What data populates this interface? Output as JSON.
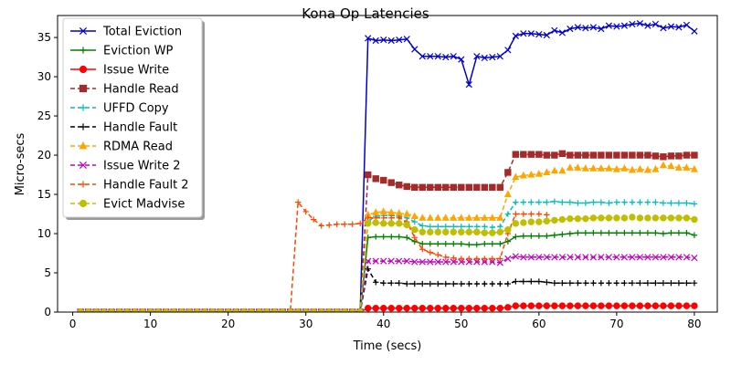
{
  "chart_data": {
    "type": "line",
    "title": "Kona Op Latencies",
    "xlabel": "Time (secs)",
    "ylabel": "Micro-secs",
    "xlim": [
      -1.95,
      82.95
    ],
    "ylim": [
      0,
      37.8
    ],
    "xticks": [
      "0",
      "10",
      "20",
      "30",
      "40",
      "50",
      "60",
      "70",
      "80"
    ],
    "yticks": [
      "0",
      "5",
      "10",
      "15",
      "20",
      "25",
      "30",
      "35"
    ],
    "grid": false,
    "legend_position": "top-left",
    "x": [
      1,
      2,
      3,
      4,
      5,
      6,
      7,
      8,
      9,
      10,
      11,
      12,
      13,
      14,
      15,
      16,
      17,
      18,
      19,
      20,
      21,
      22,
      23,
      24,
      25,
      26,
      27,
      28,
      29,
      30,
      31,
      32,
      33,
      34,
      35,
      36,
      37,
      38,
      39,
      40,
      41,
      42,
      43,
      44,
      45,
      46,
      47,
      48,
      49,
      50,
      51,
      52,
      53,
      54,
      55,
      56,
      57,
      58,
      59,
      60,
      61,
      62,
      63,
      64,
      65,
      66,
      67,
      68,
      69,
      70,
      71,
      72,
      73,
      74,
      75,
      76,
      77,
      78,
      79,
      80
    ],
    "series": [
      {
        "name": "Total Eviction",
        "color": "#0000cc",
        "style": "solid",
        "marker": "x",
        "values": [
          0,
          0,
          0,
          0,
          0,
          0,
          0,
          0,
          0,
          0,
          0,
          0,
          0,
          0,
          0,
          0,
          0,
          0,
          0,
          0,
          0,
          0,
          0,
          0,
          0,
          0,
          0,
          0,
          0,
          0,
          0,
          0,
          0,
          0,
          0,
          0,
          0,
          34.9,
          34.6,
          34.7,
          34.6,
          34.7,
          34.8,
          33.5,
          32.6,
          32.6,
          32.6,
          32.5,
          32.6,
          32.2,
          29.0,
          32.6,
          32.4,
          32.5,
          32.6,
          33.4,
          35.2,
          35.5,
          35.5,
          35.4,
          35.3,
          35.9,
          35.6,
          36.1,
          36.3,
          36.2,
          36.3,
          36.1,
          36.5,
          36.4,
          36.5,
          36.7,
          36.8,
          36.5,
          36.7,
          36.2,
          36.4,
          36.3,
          36.6,
          35.8
        ]
      },
      {
        "name": "Eviction WP",
        "color": "#008000",
        "style": "solid",
        "marker": "+",
        "values": [
          0,
          0,
          0,
          0,
          0,
          0,
          0,
          0,
          0,
          0,
          0,
          0,
          0,
          0,
          0,
          0,
          0,
          0,
          0,
          0,
          0,
          0,
          0,
          0,
          0,
          0,
          0,
          0,
          0,
          0,
          0,
          0,
          0,
          0,
          0,
          0,
          0,
          9.5,
          9.6,
          9.6,
          9.6,
          9.6,
          9.5,
          9.0,
          8.7,
          8.7,
          8.7,
          8.7,
          8.7,
          8.7,
          8.6,
          8.6,
          8.7,
          8.7,
          8.7,
          9.0,
          9.6,
          9.7,
          9.7,
          9.7,
          9.7,
          9.8,
          9.9,
          10.0,
          10.1,
          10.1,
          10.1,
          10.1,
          10.1,
          10.1,
          10.1,
          10.1,
          10.1,
          10.1,
          10.1,
          10.0,
          10.1,
          10.1,
          10.1,
          9.8
        ]
      },
      {
        "name": "Issue Write",
        "color": "#ff0000",
        "style": "solid",
        "marker": "o",
        "values": [
          0,
          0,
          0,
          0,
          0,
          0,
          0,
          0,
          0,
          0,
          0,
          0,
          0,
          0,
          0,
          0,
          0,
          0,
          0,
          0,
          0,
          0,
          0,
          0,
          0,
          0,
          0,
          0,
          0,
          0,
          0,
          0,
          0,
          0,
          0,
          0,
          0,
          0.5,
          0.5,
          0.5,
          0.5,
          0.5,
          0.5,
          0.5,
          0.5,
          0.5,
          0.5,
          0.5,
          0.5,
          0.5,
          0.5,
          0.5,
          0.5,
          0.5,
          0.5,
          0.6,
          0.8,
          0.8,
          0.8,
          0.8,
          0.8,
          0.8,
          0.8,
          0.8,
          0.8,
          0.8,
          0.8,
          0.8,
          0.8,
          0.8,
          0.8,
          0.8,
          0.8,
          0.8,
          0.8,
          0.8,
          0.8,
          0.8,
          0.8,
          0.8
        ]
      },
      {
        "name": "Handle Read",
        "color": "#a52a2a",
        "style": "dashed",
        "marker": "s",
        "values": [
          0,
          0,
          0,
          0,
          0,
          0,
          0,
          0,
          0,
          0,
          0,
          0,
          0,
          0,
          0,
          0,
          0,
          0,
          0,
          0,
          0,
          0,
          0,
          0,
          0,
          0,
          0,
          0,
          0,
          0,
          0,
          0,
          0,
          0,
          0,
          0,
          0,
          17.5,
          17.0,
          16.8,
          16.5,
          16.2,
          16.0,
          15.9,
          15.9,
          15.9,
          15.9,
          15.9,
          15.9,
          15.9,
          15.9,
          15.9,
          15.9,
          15.9,
          15.9,
          17.8,
          20.1,
          20.1,
          20.1,
          20.1,
          20.0,
          20.0,
          20.2,
          20.0,
          20.0,
          20.0,
          20.0,
          20.0,
          20.0,
          20.0,
          20.0,
          20.0,
          20.0,
          20.0,
          19.9,
          19.8,
          19.9,
          19.9,
          20.0,
          20.0
        ]
      },
      {
        "name": "UFFD Copy",
        "color": "#00bfbf",
        "style": "dashed",
        "marker": "+",
        "values": [
          0,
          0,
          0,
          0,
          0,
          0,
          0,
          0,
          0,
          0,
          0,
          0,
          0,
          0,
          0,
          0,
          0,
          0,
          0,
          0,
          0,
          0,
          0,
          0,
          0,
          0,
          0,
          0,
          0,
          0,
          0,
          0,
          0,
          0,
          0,
          0,
          0,
          11.6,
          12.2,
          12.3,
          12.3,
          12.2,
          12.0,
          11.5,
          11.0,
          10.9,
          10.9,
          10.9,
          10.9,
          10.9,
          10.9,
          10.9,
          10.9,
          10.8,
          10.9,
          12.5,
          14.0,
          14.0,
          14.0,
          14.0,
          14.0,
          14.1,
          14.0,
          14.0,
          13.9,
          13.9,
          14.0,
          14.0,
          13.9,
          14.0,
          14.0,
          14.0,
          14.0,
          14.0,
          14.0,
          13.9,
          13.9,
          13.9,
          13.9,
          13.8
        ]
      },
      {
        "name": "Handle Fault",
        "color": "#000000",
        "style": "dashed",
        "marker": "+",
        "values": [
          0,
          0,
          0,
          0,
          0,
          0,
          0,
          0,
          0,
          0,
          0,
          0,
          0,
          0,
          0,
          0,
          0,
          0,
          0,
          0,
          0,
          0,
          0,
          0,
          0,
          0,
          0,
          0,
          0,
          0,
          0,
          0,
          0,
          0,
          0,
          0,
          0,
          5.5,
          3.8,
          3.7,
          3.7,
          3.7,
          3.6,
          3.6,
          3.6,
          3.6,
          3.6,
          3.6,
          3.6,
          3.6,
          3.6,
          3.6,
          3.6,
          3.6,
          3.6,
          3.6,
          3.9,
          3.9,
          3.9,
          3.9,
          3.8,
          3.7,
          3.7,
          3.7,
          3.7,
          3.7,
          3.7,
          3.7,
          3.7,
          3.7,
          3.7,
          3.7,
          3.7,
          3.7,
          3.7,
          3.7,
          3.7,
          3.7,
          3.7,
          3.7
        ]
      },
      {
        "name": "RDMA Read",
        "color": "#ffa500",
        "style": "dashed",
        "marker": "^",
        "values": [
          0,
          0,
          0,
          0,
          0,
          0,
          0,
          0,
          0,
          0,
          0,
          0,
          0,
          0,
          0,
          0,
          0,
          0,
          0,
          0,
          0,
          0,
          0,
          0,
          0,
          0,
          0,
          0,
          0,
          0,
          0,
          0,
          0,
          0,
          0,
          0,
          0,
          12.4,
          12.7,
          12.8,
          12.7,
          12.6,
          12.5,
          12.2,
          12.0,
          12.0,
          12.0,
          12.0,
          12.0,
          12.0,
          12.0,
          12.0,
          12.0,
          12.0,
          12.0,
          15.0,
          17.2,
          17.4,
          17.5,
          17.6,
          17.8,
          18.0,
          18.0,
          18.4,
          18.4,
          18.3,
          18.3,
          18.3,
          18.3,
          18.2,
          18.3,
          18.1,
          18.2,
          18.1,
          18.2,
          18.7,
          18.6,
          18.4,
          18.4,
          18.2
        ]
      },
      {
        "name": "Issue Write 2",
        "color": "#bf00bf",
        "style": "dashed",
        "marker": "x",
        "values": [
          0,
          0,
          0,
          0,
          0,
          0,
          0,
          0,
          0,
          0,
          0,
          0,
          0,
          0,
          0,
          0,
          0,
          0,
          0,
          0,
          0,
          0,
          0,
          0,
          0,
          0,
          0,
          0,
          0,
          0,
          0,
          0,
          0,
          0,
          0,
          0,
          0,
          6.5,
          6.5,
          6.5,
          6.5,
          6.5,
          6.5,
          6.4,
          6.4,
          6.4,
          6.4,
          6.4,
          6.4,
          6.4,
          6.4,
          6.4,
          6.4,
          6.4,
          6.3,
          6.8,
          7.1,
          7.0,
          7.0,
          7.0,
          7.0,
          7.0,
          7.0,
          7.0,
          7.0,
          7.0,
          7.0,
          7.0,
          7.0,
          7.0,
          7.0,
          7.0,
          7.0,
          7.0,
          7.0,
          7.0,
          7.0,
          7.0,
          7.0,
          6.9
        ]
      },
      {
        "name": "Handle Fault 2",
        "color": "#ff4500",
        "style": "dashed",
        "marker": "+",
        "values": [
          0,
          0,
          0,
          0,
          0,
          0,
          0,
          0,
          0,
          0,
          0,
          0,
          0,
          0,
          0,
          0,
          0,
          0,
          0,
          0,
          0,
          0,
          0,
          0,
          0,
          0,
          0,
          0,
          0,
          0,
          0,
          0,
          0,
          0,
          0,
          0,
          0,
          12.0,
          12.0,
          12.0,
          12.0,
          12.0,
          11.5,
          9.5,
          8.0,
          7.6,
          7.3,
          7.0,
          6.9,
          6.8,
          6.8,
          6.8,
          6.8,
          6.8,
          6.8,
          10.0,
          12.5,
          12.5,
          12.5,
          12.5,
          12.4,
          null,
          null,
          null,
          null,
          null,
          null,
          null,
          null,
          null,
          null,
          null,
          null,
          null,
          null,
          null,
          null,
          null,
          null,
          null
        ],
        "extra_points": [
          [
            28,
            0
          ],
          [
            29,
            14.0
          ],
          [
            30,
            12.8
          ],
          [
            31,
            11.8
          ],
          [
            32,
            11.0
          ],
          [
            33,
            11.1
          ],
          [
            34,
            11.2
          ],
          [
            35,
            11.2
          ],
          [
            36,
            11.2
          ],
          [
            37,
            11.3
          ]
        ]
      },
      {
        "name": "Evict Madvise",
        "color": "#bfbf00",
        "style": "dashed",
        "marker": "o",
        "values": [
          0,
          0,
          0,
          0,
          0,
          0,
          0,
          0,
          0,
          0,
          0,
          0,
          0,
          0,
          0,
          0,
          0,
          0,
          0,
          0,
          0,
          0,
          0,
          0,
          0,
          0,
          0,
          0,
          0,
          0,
          0,
          0,
          0,
          0,
          0,
          0,
          0,
          11.3,
          11.4,
          11.3,
          11.3,
          11.3,
          11.1,
          10.5,
          10.2,
          10.2,
          10.2,
          10.2,
          10.2,
          10.2,
          10.2,
          10.2,
          10.1,
          10.1,
          10.2,
          10.5,
          11.3,
          11.4,
          11.5,
          11.5,
          11.6,
          11.7,
          11.8,
          11.9,
          11.9,
          11.9,
          12.0,
          12.0,
          12.0,
          12.0,
          12.0,
          12.1,
          12.0,
          12.0,
          12.0,
          12.0,
          12.0,
          12.0,
          12.0,
          11.8
        ]
      }
    ]
  }
}
